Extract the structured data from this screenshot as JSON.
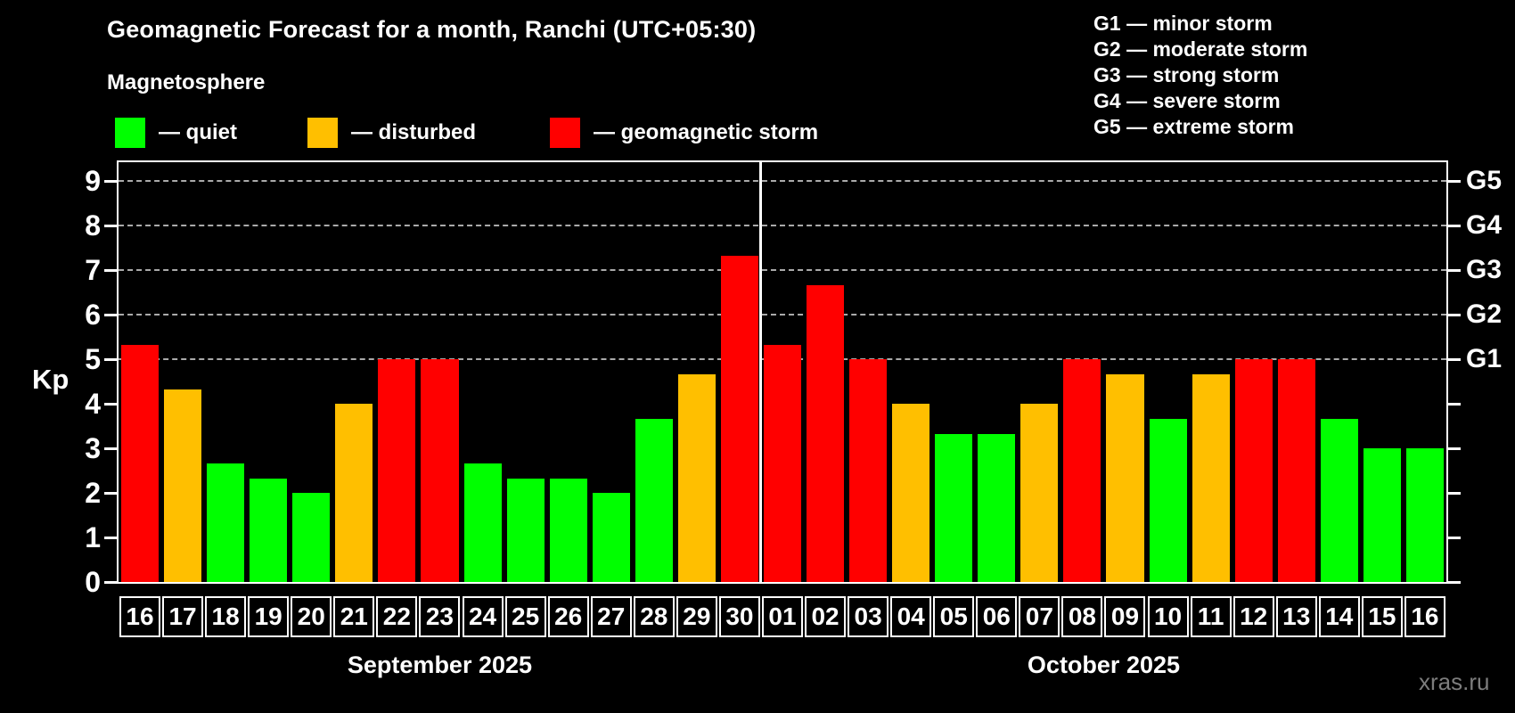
{
  "header": {
    "title": "Geomagnetic Forecast for a month, Ranchi (UTC+05:30)",
    "subtitle": "Magnetosphere",
    "legend": [
      {
        "status": "quiet",
        "label": "— quiet"
      },
      {
        "status": "disturbed",
        "label": "— disturbed"
      },
      {
        "status": "storm",
        "label": "— geomagnetic storm"
      }
    ],
    "g_legend": [
      "G1 — minor storm",
      "G2 — moderate storm",
      "G3 — strong storm",
      "G4 — severe storm",
      "G5 — extreme storm"
    ]
  },
  "colors": {
    "quiet": "#00ff00",
    "disturbed": "#ffbf00",
    "storm": "#ff0000",
    "grid": "#aaaaaa",
    "frame": "#ffffff",
    "watermark": "#7d7d7d",
    "background": "#000000"
  },
  "chart_data": {
    "type": "bar",
    "title": "Geomagnetic Forecast for a month, Ranchi (UTC+05:30)",
    "xlabel": "",
    "ylabel": "Kp",
    "ylim": [
      0,
      9.4
    ],
    "grid": "dashed horizontal at Kp 5-9 only",
    "left_axis_ticks": [
      "0",
      "1",
      "2",
      "3",
      "4",
      "5",
      "6",
      "7",
      "8",
      "9"
    ],
    "right_axis_labels": [
      {
        "label": "G1",
        "kp": 5
      },
      {
        "label": "G2",
        "kp": 6
      },
      {
        "label": "G3",
        "kp": 7
      },
      {
        "label": "G4",
        "kp": 8
      },
      {
        "label": "G5",
        "kp": 9
      }
    ],
    "months": [
      {
        "label": "September 2025",
        "days": [
          "16",
          "17",
          "18",
          "19",
          "20",
          "21",
          "22",
          "23",
          "24",
          "25",
          "26",
          "27",
          "28",
          "29",
          "30"
        ],
        "values": [
          5.33,
          4.33,
          2.67,
          2.33,
          2.0,
          4.0,
          5.0,
          5.0,
          2.67,
          2.33,
          2.33,
          2.0,
          3.67,
          4.67,
          7.33
        ],
        "status": [
          "storm",
          "disturbed",
          "quiet",
          "quiet",
          "quiet",
          "disturbed",
          "storm",
          "storm",
          "quiet",
          "quiet",
          "quiet",
          "quiet",
          "quiet",
          "disturbed",
          "storm"
        ]
      },
      {
        "label": "October 2025",
        "days": [
          "01",
          "02",
          "03",
          "04",
          "05",
          "06",
          "07",
          "08",
          "09",
          "10",
          "11",
          "12",
          "13",
          "14",
          "15",
          "16"
        ],
        "values": [
          5.33,
          6.67,
          5.0,
          4.0,
          3.33,
          3.33,
          4.0,
          5.0,
          4.67,
          3.67,
          4.67,
          5.0,
          5.0,
          3.67,
          3.0,
          3.0
        ],
        "status": [
          "storm",
          "storm",
          "storm",
          "disturbed",
          "quiet",
          "quiet",
          "disturbed",
          "storm",
          "disturbed",
          "quiet",
          "disturbed",
          "storm",
          "storm",
          "quiet",
          "quiet",
          "quiet"
        ]
      }
    ]
  },
  "footer": {
    "watermark": "xras.ru"
  }
}
